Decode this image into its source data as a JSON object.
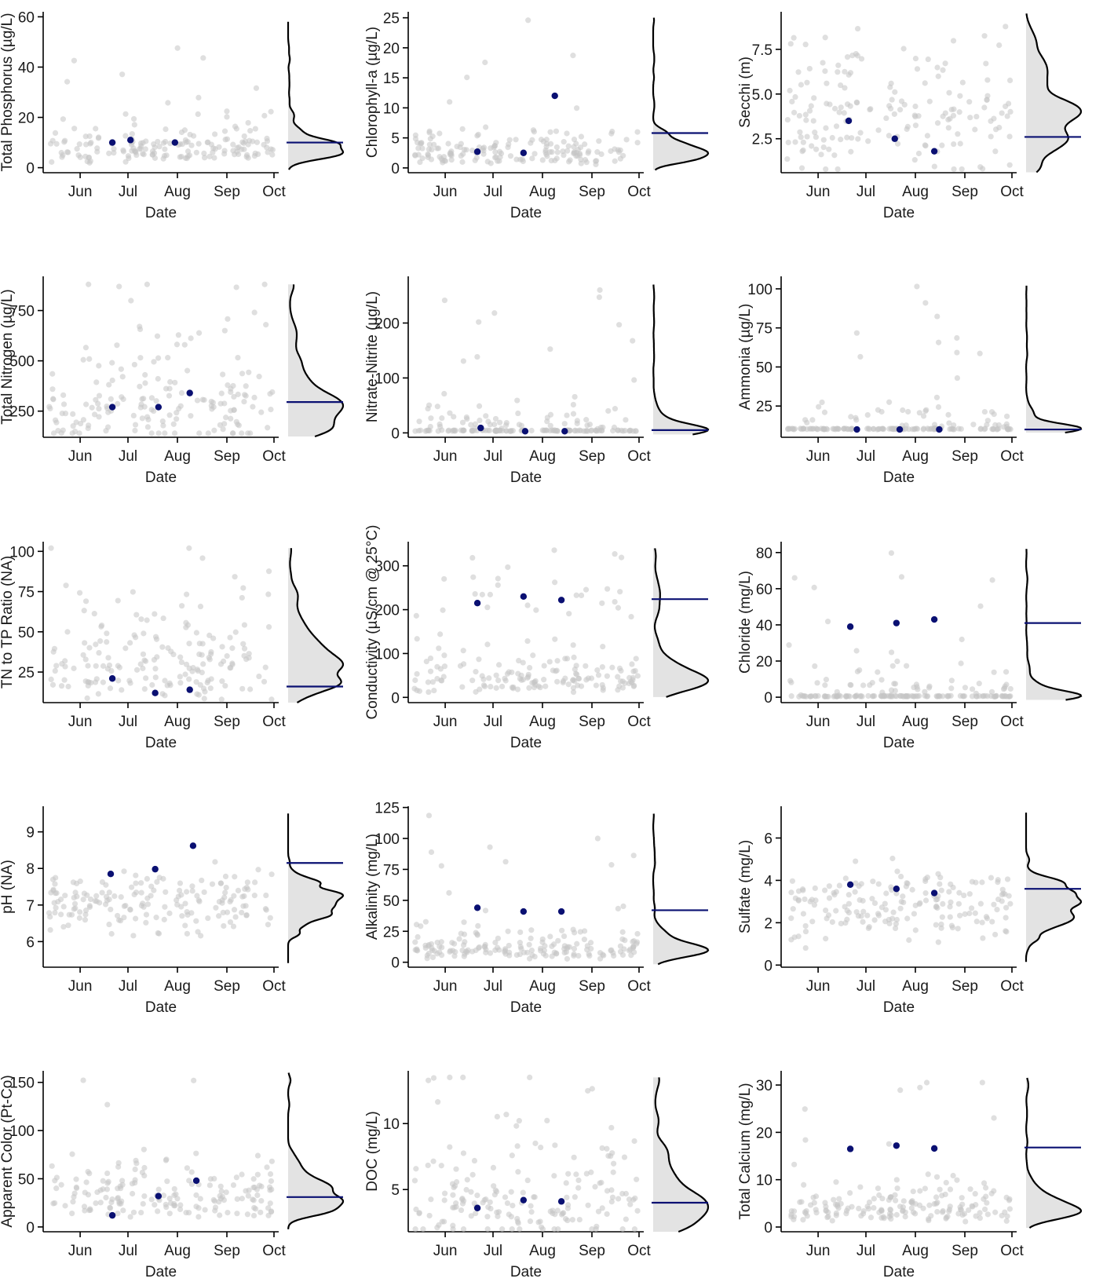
{
  "figure": {
    "colors": {
      "background_points": "#c4c4c4",
      "sample_points": "#0a1072",
      "reference_line": "#0a1072",
      "density_curve": "#000000",
      "density_fill": "#e3e3e3"
    },
    "x_tick_labels": [
      "Jun",
      "Jul",
      "Aug",
      "Sep",
      "Oct"
    ],
    "x_label": "Date"
  },
  "chart_data": [
    {
      "type": "scatter",
      "ylabel": "Total Phosphorus (µg/L)",
      "xlabel": "Date",
      "x_ticks": [
        "Jun",
        "Jul",
        "Aug",
        "Sep",
        "Oct"
      ],
      "ylim": [
        -2,
        62
      ],
      "y_ticks": [
        {
          "v": 0,
          "label": "0"
        },
        {
          "v": 20,
          "label": "20"
        },
        {
          "v": 40,
          "label": "40"
        },
        {
          "v": 60,
          "label": "60"
        }
      ],
      "sample_points": [
        {
          "x": "2023-06-26",
          "y": 10
        },
        {
          "x": "2023-07-07",
          "y": 11
        },
        {
          "x": "2023-08-03",
          "y": 10
        }
      ],
      "reference_value": 10,
      "distribution": {
        "typical": 8,
        "spread": 5,
        "floor": 0.5,
        "max": 58,
        "skew": "right",
        "peak_value": 7,
        "density_shape": "right-skewed, peak near 7, long tail to 60"
      }
    },
    {
      "type": "scatter",
      "ylabel": "Chlorophyll-a (µg/L)",
      "xlabel": "Date",
      "x_ticks": [
        "Jun",
        "Jul",
        "Aug",
        "Sep",
        "Oct"
      ],
      "ylim": [
        -0.8,
        26
      ],
      "y_ticks": [
        {
          "v": 0,
          "label": "0"
        },
        {
          "v": 5,
          "label": "5"
        },
        {
          "v": 10,
          "label": "10"
        },
        {
          "v": 15,
          "label": "15"
        },
        {
          "v": 20,
          "label": "20"
        },
        {
          "v": 25,
          "label": "25"
        }
      ],
      "sample_points": [
        {
          "x": "2023-06-26",
          "y": 2.7
        },
        {
          "x": "2023-07-24",
          "y": 2.5
        },
        {
          "x": "2023-08-12",
          "y": 12
        }
      ],
      "reference_value": 5.8,
      "distribution": {
        "typical": 2.6,
        "spread": 2,
        "floor": 0.2,
        "max": 25,
        "skew": "right",
        "peak_value": 1.5,
        "density_shape": "right-skewed, peak near 1.5"
      }
    },
    {
      "type": "scatter",
      "ylabel": "Secchi (m)",
      "xlabel": "Date",
      "x_ticks": [
        "Jun",
        "Jul",
        "Aug",
        "Sep",
        "Oct"
      ],
      "ylim": [
        0.6,
        9.6
      ],
      "y_ticks": [
        {
          "v": 2.5,
          "label": "2.5"
        },
        {
          "v": 5.0,
          "label": "5.0"
        },
        {
          "v": 7.5,
          "label": "7.5"
        }
      ],
      "sample_points": [
        {
          "x": "2023-06-25",
          "y": 3.5
        },
        {
          "x": "2023-07-23",
          "y": 2.5
        },
        {
          "x": "2023-08-16",
          "y": 1.8
        }
      ],
      "reference_value": 2.6,
      "distribution": {
        "typical": 3.8,
        "spread": 1.8,
        "floor": 0.8,
        "max": 9.5,
        "skew": "none",
        "peak_value": 3.8,
        "density_shape": "broad hump, peak near 3.8"
      }
    },
    {
      "type": "scatter",
      "ylabel": "Total Nitrogen (µg/L)",
      "xlabel": "Date",
      "x_ticks": [
        "Jun",
        "Jul",
        "Aug",
        "Sep",
        "Oct"
      ],
      "ylim": [
        120,
        920
      ],
      "y_ticks": [
        {
          "v": 250,
          "label": "250"
        },
        {
          "v": 500,
          "label": "500"
        },
        {
          "v": 750,
          "label": "750"
        }
      ],
      "sample_points": [
        {
          "x": "2023-06-26",
          "y": 270
        },
        {
          "x": "2023-07-24",
          "y": 270
        },
        {
          "x": "2023-08-12",
          "y": 340
        }
      ],
      "reference_value": 295,
      "distribution": {
        "typical": 280,
        "spread": 95,
        "floor": 140,
        "max": 880,
        "skew": "right",
        "peak_value": 230,
        "density_shape": "right-skewed, peak near 230"
      }
    },
    {
      "type": "scatter",
      "ylabel": "Nitrate-Nitrite (µg/L)",
      "xlabel": "Date",
      "x_ticks": [
        "Jun",
        "Jul",
        "Aug",
        "Sep",
        "Oct"
      ],
      "ylim": [
        -8,
        285
      ],
      "y_ticks": [
        {
          "v": 0,
          "label": "0"
        },
        {
          "v": 100,
          "label": "100"
        },
        {
          "v": 200,
          "label": "200"
        }
      ],
      "sample_points": [
        {
          "x": "2023-06-28",
          "y": 9
        },
        {
          "x": "2023-07-25",
          "y": 3
        },
        {
          "x": "2023-08-18",
          "y": 3
        }
      ],
      "reference_value": 5,
      "distribution": {
        "typical": 3,
        "spread": 25,
        "floor": 3,
        "max": 270,
        "skew": "extreme",
        "peak_value": 5,
        "density_shape": "sharp spike near detection limit"
      }
    },
    {
      "type": "scatter",
      "ylabel": "Ammonia (µg/L)",
      "xlabel": "Date",
      "x_ticks": [
        "Jun",
        "Jul",
        "Aug",
        "Sep",
        "Oct"
      ],
      "ylim": [
        5,
        108
      ],
      "y_ticks": [
        {
          "v": 25,
          "label": "25"
        },
        {
          "v": 50,
          "label": "50"
        },
        {
          "v": 75,
          "label": "75"
        },
        {
          "v": 100,
          "label": "100"
        }
      ],
      "sample_points": [
        {
          "x": "2023-06-30",
          "y": 10
        },
        {
          "x": "2023-07-26",
          "y": 10
        },
        {
          "x": "2023-08-19",
          "y": 10
        }
      ],
      "reference_value": 10,
      "distribution": {
        "typical": 10,
        "spread": 8,
        "floor": 10,
        "max": 102,
        "skew": "extreme",
        "peak_value": 10,
        "density_shape": "sharp spike near 10"
      }
    },
    {
      "type": "scatter",
      "ylabel": "TN to TP Ratio (NA)",
      "xlabel": "Date",
      "x_ticks": [
        "Jun",
        "Jul",
        "Aug",
        "Sep",
        "Oct"
      ],
      "ylim": [
        6,
        106
      ],
      "y_ticks": [
        {
          "v": 25,
          "label": "25"
        },
        {
          "v": 50,
          "label": "50"
        },
        {
          "v": 75,
          "label": "75"
        },
        {
          "v": 100,
          "label": "100"
        }
      ],
      "sample_points": [
        {
          "x": "2023-06-26",
          "y": 21
        },
        {
          "x": "2023-07-22",
          "y": 12
        },
        {
          "x": "2023-08-12",
          "y": 14
        }
      ],
      "reference_value": 16,
      "distribution": {
        "typical": 30,
        "spread": 11,
        "floor": 8,
        "max": 102,
        "skew": "right",
        "peak_value": 28,
        "density_shape": "hump peak near 28"
      }
    },
    {
      "type": "scatter",
      "ylabel": "Conductivity (µS/cm @ 25°C)",
      "xlabel": "Date",
      "x_ticks": [
        "Jun",
        "Jul",
        "Aug",
        "Sep",
        "Oct"
      ],
      "ylim": [
        -12,
        355
      ],
      "y_ticks": [
        {
          "v": 0,
          "label": "0"
        },
        {
          "v": 100,
          "label": "100"
        },
        {
          "v": 200,
          "label": "200"
        },
        {
          "v": 300,
          "label": "300"
        }
      ],
      "sample_points": [
        {
          "x": "2023-06-26",
          "y": 215
        },
        {
          "x": "2023-07-24",
          "y": 230
        },
        {
          "x": "2023-08-16",
          "y": 222
        }
      ],
      "reference_value": 224,
      "distribution": {
        "typical": 40,
        "spread": 30,
        "floor": 8,
        "max": 340,
        "skew": "bimodal",
        "peak_value": 25,
        "density_shape": "peak near 25, long tail to 340"
      }
    },
    {
      "type": "scatter",
      "ylabel": "Chloride (mg/L)",
      "xlabel": "Date",
      "x_ticks": [
        "Jun",
        "Jul",
        "Aug",
        "Sep",
        "Oct"
      ],
      "ylim": [
        -3,
        86
      ],
      "y_ticks": [
        {
          "v": 0,
          "label": "0"
        },
        {
          "v": 20,
          "label": "20"
        },
        {
          "v": 40,
          "label": "40"
        },
        {
          "v": 60,
          "label": "60"
        },
        {
          "v": 80,
          "label": "80"
        }
      ],
      "sample_points": [
        {
          "x": "2023-06-26",
          "y": 39
        },
        {
          "x": "2023-07-24",
          "y": 41
        },
        {
          "x": "2023-08-16",
          "y": 43
        }
      ],
      "reference_value": 41,
      "distribution": {
        "typical": 3,
        "spread": 6,
        "floor": 0.3,
        "max": 82,
        "skew": "extreme",
        "peak_value": 1,
        "density_shape": "spike near 1 with long tail"
      }
    },
    {
      "type": "scatter",
      "ylabel": "pH (NA)",
      "xlabel": "Date",
      "x_ticks": [
        "Jun",
        "Jul",
        "Aug",
        "Sep",
        "Oct"
      ],
      "ylim": [
        5.3,
        9.7
      ],
      "y_ticks": [
        {
          "v": 6,
          "label": "6"
        },
        {
          "v": 7,
          "label": "7"
        },
        {
          "v": 8,
          "label": "8"
        },
        {
          "v": 9,
          "label": "9"
        }
      ],
      "sample_points": [
        {
          "x": "2023-06-25",
          "y": 7.85
        },
        {
          "x": "2023-07-22",
          "y": 7.98
        },
        {
          "x": "2023-08-14",
          "y": 8.62
        }
      ],
      "reference_value": 8.15,
      "distribution": {
        "typical": 7.1,
        "spread": 0.45,
        "floor": 5.5,
        "max": 9.5,
        "skew": "none",
        "peak_value": 7.15,
        "density_shape": "bell peak near 7.15"
      }
    },
    {
      "type": "scatter",
      "ylabel": "Alkalinity (mg/L)",
      "xlabel": "Date",
      "x_ticks": [
        "Jun",
        "Jul",
        "Aug",
        "Sep",
        "Oct"
      ],
      "ylim": [
        -4,
        126
      ],
      "y_ticks": [
        {
          "v": 0,
          "label": "0"
        },
        {
          "v": 25,
          "label": "25"
        },
        {
          "v": 50,
          "label": "50"
        },
        {
          "v": 75,
          "label": "75"
        },
        {
          "v": 100,
          "label": "100"
        },
        {
          "v": 125,
          "label": "125"
        }
      ],
      "sample_points": [
        {
          "x": "2023-06-26",
          "y": 44
        },
        {
          "x": "2023-07-24",
          "y": 41
        },
        {
          "x": "2023-08-16",
          "y": 41
        }
      ],
      "reference_value": 42,
      "distribution": {
        "typical": 11,
        "spread": 9,
        "floor": 1,
        "max": 120,
        "skew": "right",
        "peak_value": 11,
        "density_shape": "peak near 11, long tail"
      }
    },
    {
      "type": "scatter",
      "ylabel": "Sulfate (mg/L)",
      "xlabel": "Date",
      "x_ticks": [
        "Jun",
        "Jul",
        "Aug",
        "Sep",
        "Oct"
      ],
      "ylim": [
        -0.1,
        7.5
      ],
      "y_ticks": [
        {
          "v": 0,
          "label": "0"
        },
        {
          "v": 2,
          "label": "2"
        },
        {
          "v": 4,
          "label": "4"
        },
        {
          "v": 6,
          "label": "6"
        }
      ],
      "sample_points": [
        {
          "x": "2023-06-26",
          "y": 3.8
        },
        {
          "x": "2023-07-24",
          "y": 3.6
        },
        {
          "x": "2023-08-16",
          "y": 3.4
        }
      ],
      "reference_value": 3.6,
      "distribution": {
        "typical": 2.8,
        "spread": 0.9,
        "floor": 0.3,
        "max": 7.2,
        "skew": "none",
        "peak_value": 2.5,
        "density_shape": "hump peak near 2.5"
      }
    },
    {
      "type": "scatter",
      "ylabel": "Apparent Color (Pt-Co)",
      "xlabel": "Date",
      "x_ticks": [
        "Jun",
        "Jul",
        "Aug",
        "Sep",
        "Oct"
      ],
      "ylim": [
        -5,
        162
      ],
      "y_ticks": [
        {
          "v": 0,
          "label": "0"
        },
        {
          "v": 50,
          "label": "50"
        },
        {
          "v": 100,
          "label": "100"
        },
        {
          "v": 150,
          "label": "150"
        }
      ],
      "sample_points": [
        {
          "x": "2023-06-26",
          "y": 12
        },
        {
          "x": "2023-07-24",
          "y": 32
        },
        {
          "x": "2023-08-16",
          "y": 48
        }
      ],
      "reference_value": 31,
      "distribution": {
        "typical": 28,
        "spread": 18,
        "floor": 1,
        "max": 160,
        "skew": "right",
        "peak_value": 20,
        "density_shape": "peak near 20, long tail"
      }
    },
    {
      "type": "scatter",
      "ylabel": "DOC (mg/L)",
      "xlabel": "Date",
      "x_ticks": [
        "Jun",
        "Jul",
        "Aug",
        "Sep",
        "Oct"
      ],
      "ylim": [
        1.8,
        14
      ],
      "y_ticks": [
        {
          "v": 5,
          "label": "5"
        },
        {
          "v": 10,
          "label": "10"
        }
      ],
      "sample_points": [
        {
          "x": "2023-06-26",
          "y": 3.6
        },
        {
          "x": "2023-07-24",
          "y": 4.2
        },
        {
          "x": "2023-08-16",
          "y": 4.1
        }
      ],
      "reference_value": 4,
      "distribution": {
        "typical": 4.4,
        "spread": 1.3,
        "floor": 2,
        "max": 13.5,
        "skew": "right",
        "peak_value": 4.2,
        "density_shape": "peak near 4.2"
      }
    },
    {
      "type": "scatter",
      "ylabel": "Total Calcium (mg/L)",
      "xlabel": "Date",
      "x_ticks": [
        "Jun",
        "Jul",
        "Aug",
        "Sep",
        "Oct"
      ],
      "ylim": [
        -1,
        33
      ],
      "y_ticks": [
        {
          "v": 0,
          "label": "0"
        },
        {
          "v": 10,
          "label": "10"
        },
        {
          "v": 20,
          "label": "20"
        },
        {
          "v": 30,
          "label": "30"
        }
      ],
      "sample_points": [
        {
          "x": "2023-06-26",
          "y": 16.5
        },
        {
          "x": "2023-07-24",
          "y": 17.2
        },
        {
          "x": "2023-08-16",
          "y": 16.6
        }
      ],
      "reference_value": 16.8,
      "distribution": {
        "typical": 4,
        "spread": 3,
        "floor": 0.5,
        "max": 31.5,
        "skew": "right",
        "peak_value": 3,
        "density_shape": "peak near 3, long tail"
      }
    }
  ]
}
